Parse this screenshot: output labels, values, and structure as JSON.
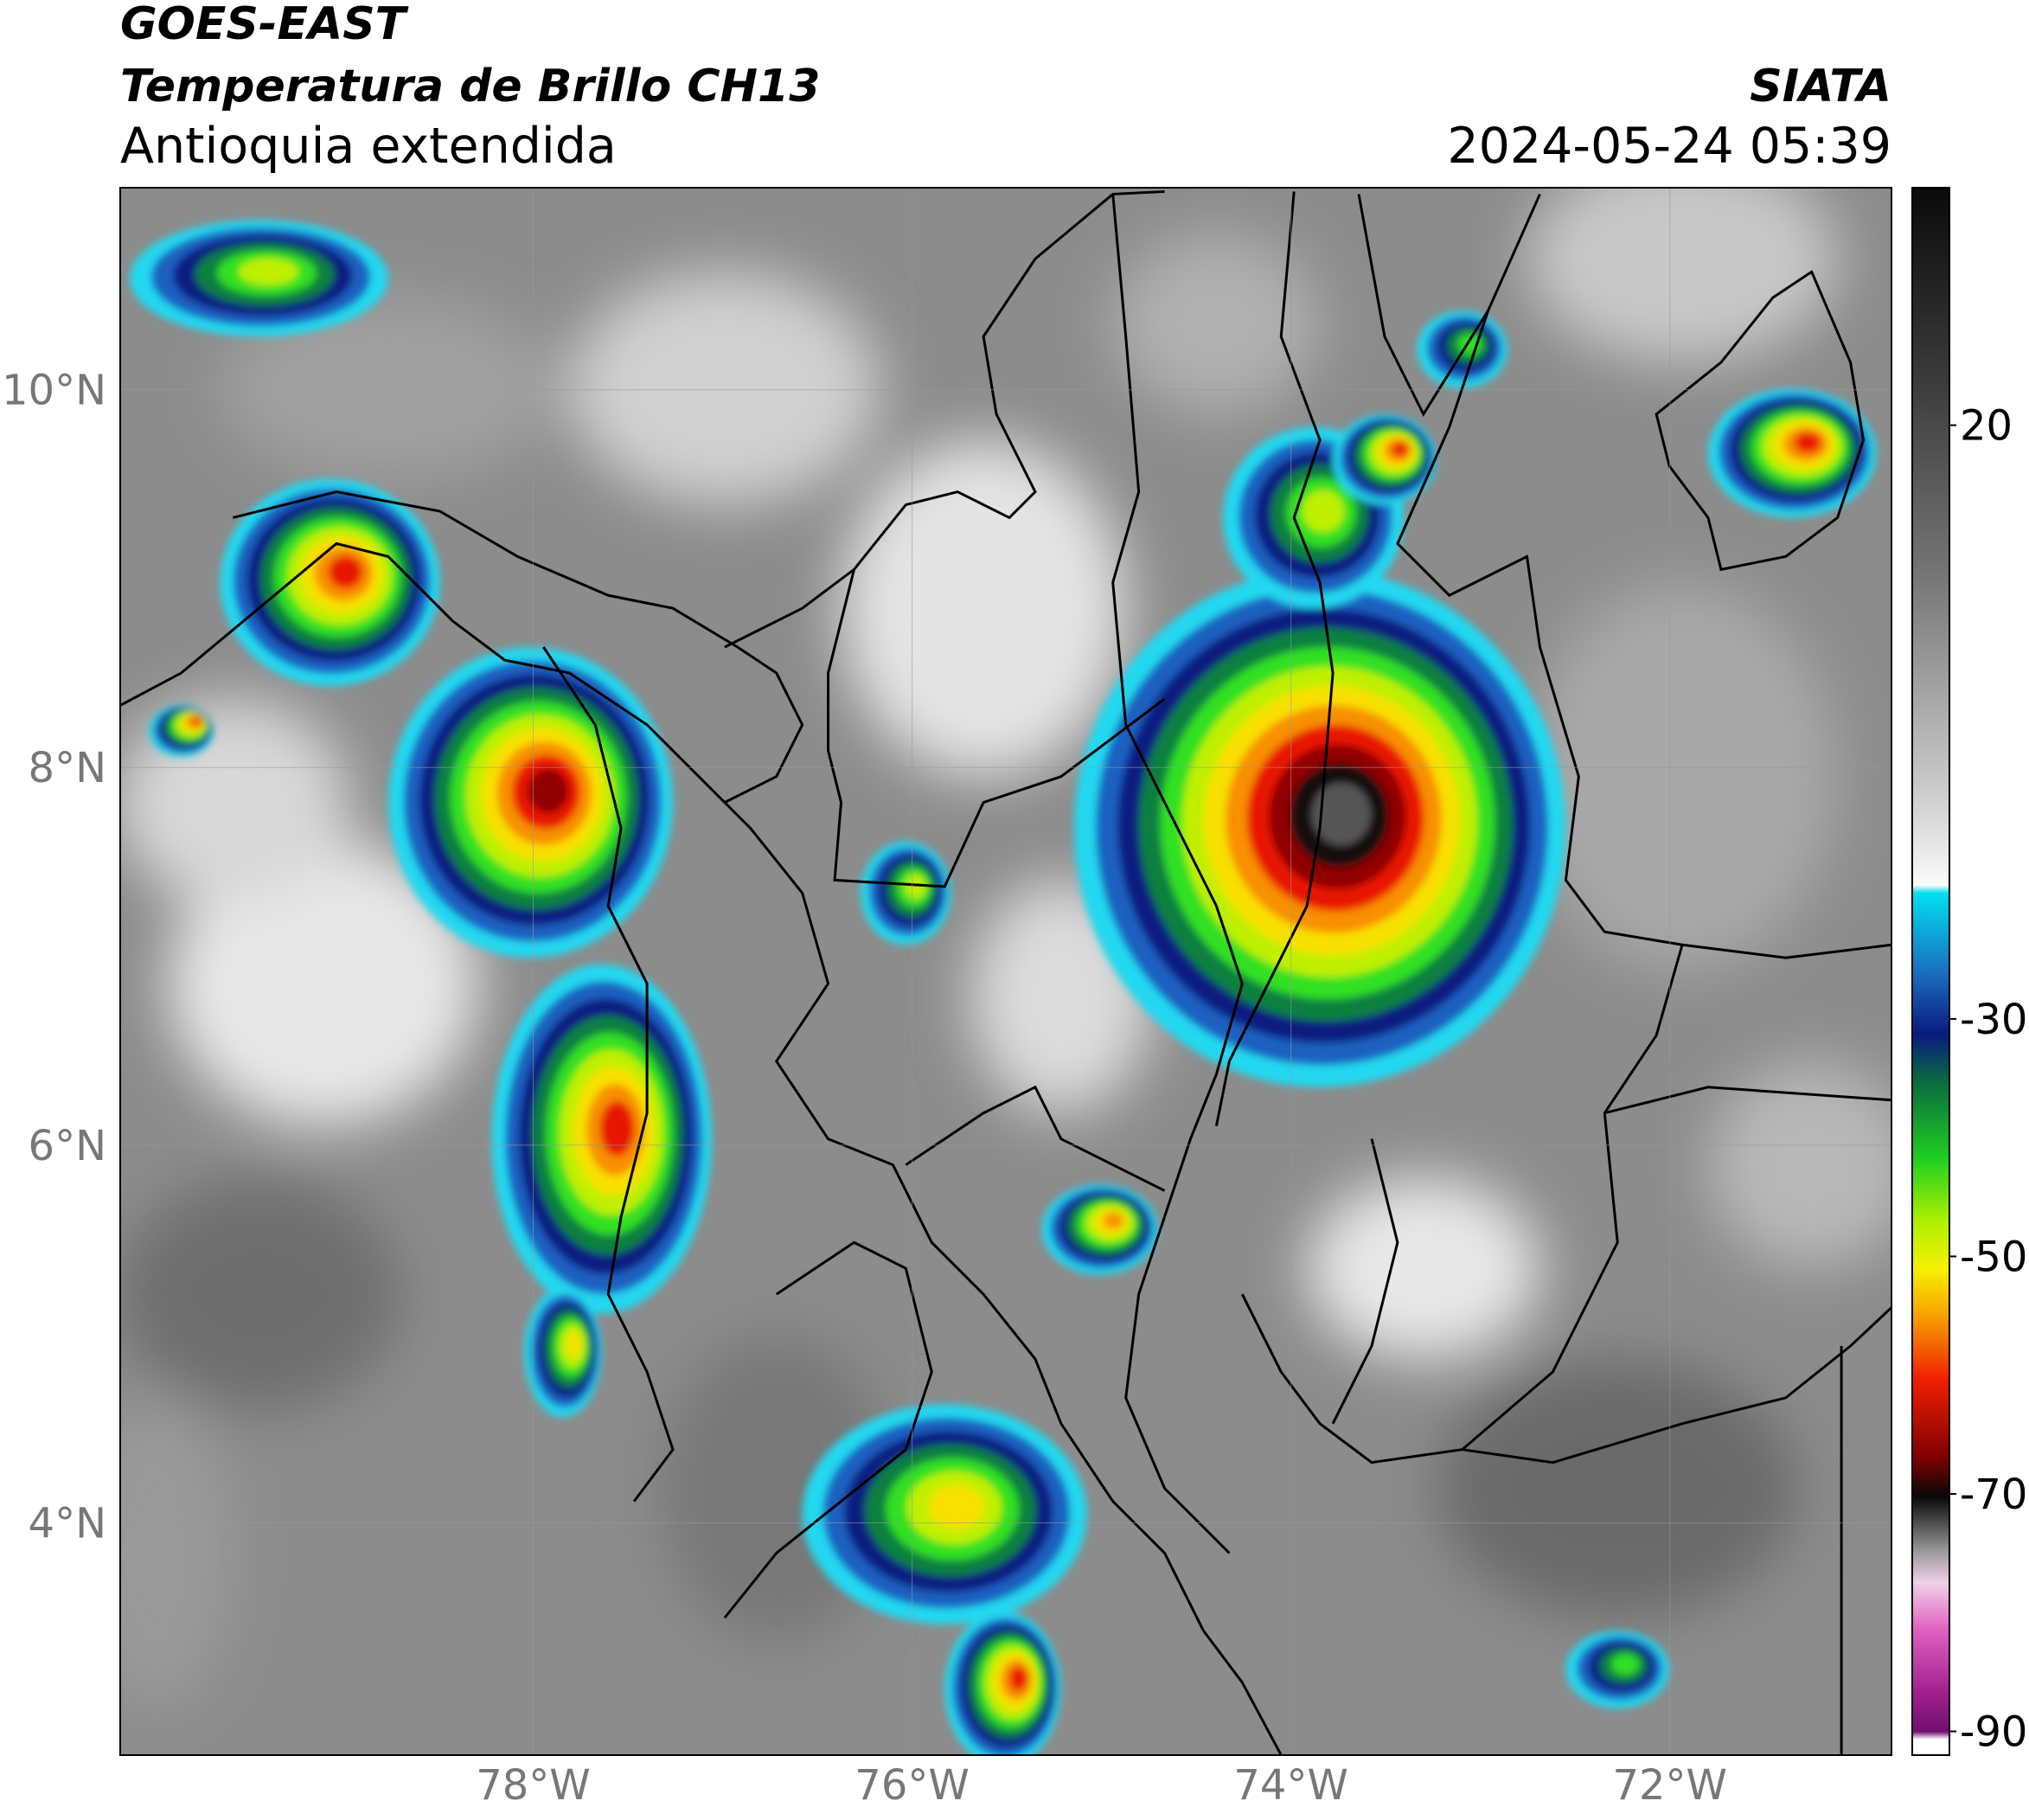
{
  "header": {
    "title": "GOES-EAST",
    "subtitle": "Temperatura de Brillo CH13",
    "region": "Antioquia extendida",
    "source": "SIATA",
    "datetime": "2024-05-24 05:39"
  },
  "map": {
    "xlim": [
      -80.18,
      -70.83
    ],
    "ylim": [
      2.77,
      11.07
    ],
    "xticks": [
      {
        "value": -78,
        "label": "78°W"
      },
      {
        "value": -76,
        "label": "76°W"
      },
      {
        "value": -74,
        "label": "74°W"
      },
      {
        "value": -72,
        "label": "72°W"
      }
    ],
    "yticks": [
      {
        "value": 4,
        "label": "4°N"
      },
      {
        "value": 6,
        "label": "6°N"
      },
      {
        "value": 8,
        "label": "8°N"
      },
      {
        "value": 10,
        "label": "10°N"
      }
    ],
    "grid": true
  },
  "colorbar": {
    "lim": [
      -92,
      40
    ],
    "ticks": [
      20,
      -30,
      -50,
      -70,
      -90
    ]
  }
}
